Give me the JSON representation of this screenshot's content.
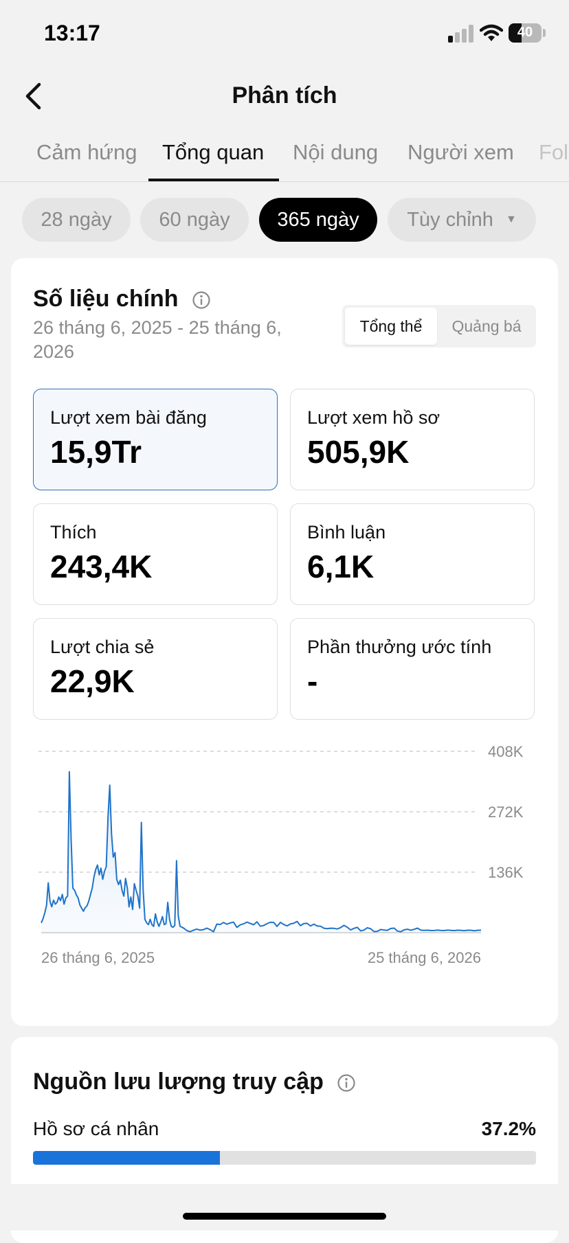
{
  "status_bar": {
    "time": "13:17",
    "battery": "40",
    "battery_level": 0.4
  },
  "header": {
    "title": "Phân tích"
  },
  "tabs": [
    {
      "label": "Cảm hứng",
      "active": false
    },
    {
      "label": "Tổng quan",
      "active": true
    },
    {
      "label": "Nội dung",
      "active": false
    },
    {
      "label": "Người xem",
      "active": false
    },
    {
      "label": "Fol",
      "active": false
    }
  ],
  "date_chips": [
    {
      "label": "28 ngày",
      "active": false
    },
    {
      "label": "60 ngày",
      "active": false
    },
    {
      "label": "365 ngày",
      "active": true
    },
    {
      "label": "Tùy chỉnh",
      "active": false
    }
  ],
  "key_metrics": {
    "title": "Số liệu chính",
    "date_range": "26 tháng 6, 2025 - 25 tháng 6, 2026",
    "segment": {
      "overall": "Tổng thể",
      "promoted": "Quảng bá"
    },
    "stats": [
      {
        "label": "Lượt xem bài đăng",
        "value": "15,9Tr",
        "selected": true
      },
      {
        "label": "Lượt xem hồ sơ",
        "value": "505,9K",
        "selected": false
      },
      {
        "label": "Thích",
        "value": "243,4K",
        "selected": false
      },
      {
        "label": "Bình luận",
        "value": "6,1K",
        "selected": false
      },
      {
        "label": "Lượt chia sẻ",
        "value": "22,9K",
        "selected": false
      },
      {
        "label": "Phần thưởng ước tính",
        "value": "-",
        "selected": false
      }
    ]
  },
  "chart_data": {
    "type": "area",
    "title": "",
    "xlabel": "",
    "ylabel": "",
    "x_start_label": "26 tháng 6, 2025",
    "x_end_label": "25 tháng 6, 2026",
    "ylim": [
      0,
      408000
    ],
    "yticks": [
      {
        "value": 136000,
        "label": "136K"
      },
      {
        "value": 272000,
        "label": "272K"
      },
      {
        "value": 408000,
        "label": "408K"
      }
    ],
    "grid": true,
    "line_color": "#1f73c9",
    "series": [
      {
        "values": [
          22000,
          31000,
          44000,
          61000,
          112000,
          70000,
          58000,
          73000,
          64000,
          68000,
          80000,
          72000,
          86000,
          64000,
          78000,
          82000,
          362000,
          210000,
          100000,
          95000,
          85000,
          78000,
          62000,
          55000,
          48000,
          56000,
          60000,
          70000,
          85000,
          100000,
          125000,
          142000,
          152000,
          130000,
          145000,
          120000,
          138000,
          148000,
          260000,
          332000,
          222000,
          170000,
          180000,
          120000,
          108000,
          118000,
          95000,
          82000,
          122000,
          100000,
          58000,
          80000,
          52000,
          110000,
          95000,
          82000,
          55000,
          248000,
          96000,
          30000,
          22000,
          18000,
          30000,
          18000,
          14000,
          42000,
          24000,
          14000,
          24000,
          36000,
          18000,
          20000,
          68000,
          30000,
          14000,
          12000,
          16000,
          162000,
          38000,
          14000
        ]
      }
    ]
  },
  "traffic": {
    "title": "Nguồn lưu lượng truy cập",
    "rows": [
      {
        "label": "Hồ sơ cá nhân",
        "pct_label": "37.2%",
        "pct": 37.2
      }
    ]
  }
}
